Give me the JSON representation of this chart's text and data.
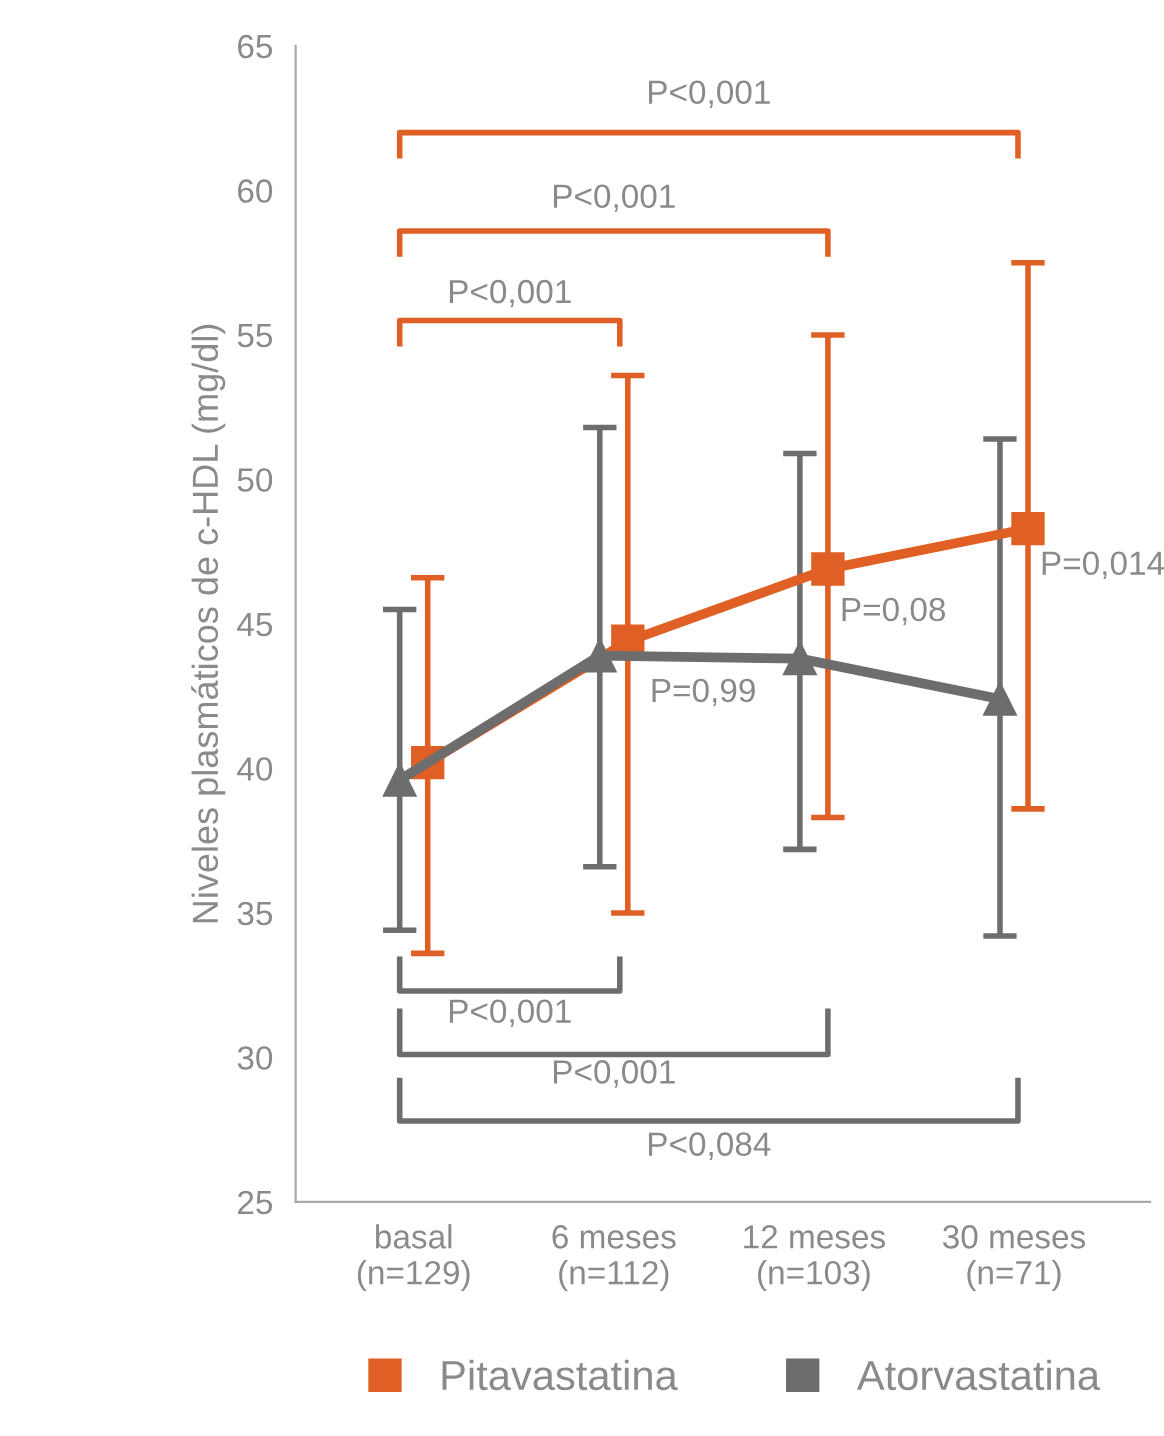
{
  "chart_data": {
    "type": "line",
    "ylabel": "Niveles plasmáticos de c-HDL (mg/dl)",
    "categories": [
      "basal\n(n=129)",
      "6 meses\n(n=112)",
      "12 meses\n(n=103)",
      "30 meses\n(n=71)"
    ],
    "series": [
      {
        "name": "Pitavastatina",
        "color": "#e05f24",
        "marker": "square",
        "values": [
          40.2,
          44.4,
          46.9,
          48.3
        ],
        "errors": [
          [
            33.6,
            46.6
          ],
          [
            35.0,
            53.6
          ],
          [
            38.3,
            55.0
          ],
          [
            38.6,
            57.5
          ]
        ]
      },
      {
        "name": "Atorvastatina",
        "color": "#6d6d6e",
        "marker": "triangle",
        "values": [
          39.6,
          43.9,
          43.8,
          42.4
        ],
        "errors": [
          [
            34.4,
            45.5
          ],
          [
            36.6,
            51.8
          ],
          [
            37.2,
            50.9
          ],
          [
            34.2,
            51.4
          ]
        ]
      }
    ],
    "ylim": [
      25,
      65
    ],
    "yticks": [
      25,
      30,
      35,
      40,
      45,
      50,
      55,
      60,
      65
    ],
    "grid": false,
    "legend": "bottom",
    "line_style": "solid",
    "annotations": [
      "P<0,001",
      "P<0,001",
      "P<0,001",
      "P<0,001",
      "P<0,001",
      "P<0,084",
      "P=0,99",
      "P=0,08",
      "P=0,014"
    ]
  }
}
